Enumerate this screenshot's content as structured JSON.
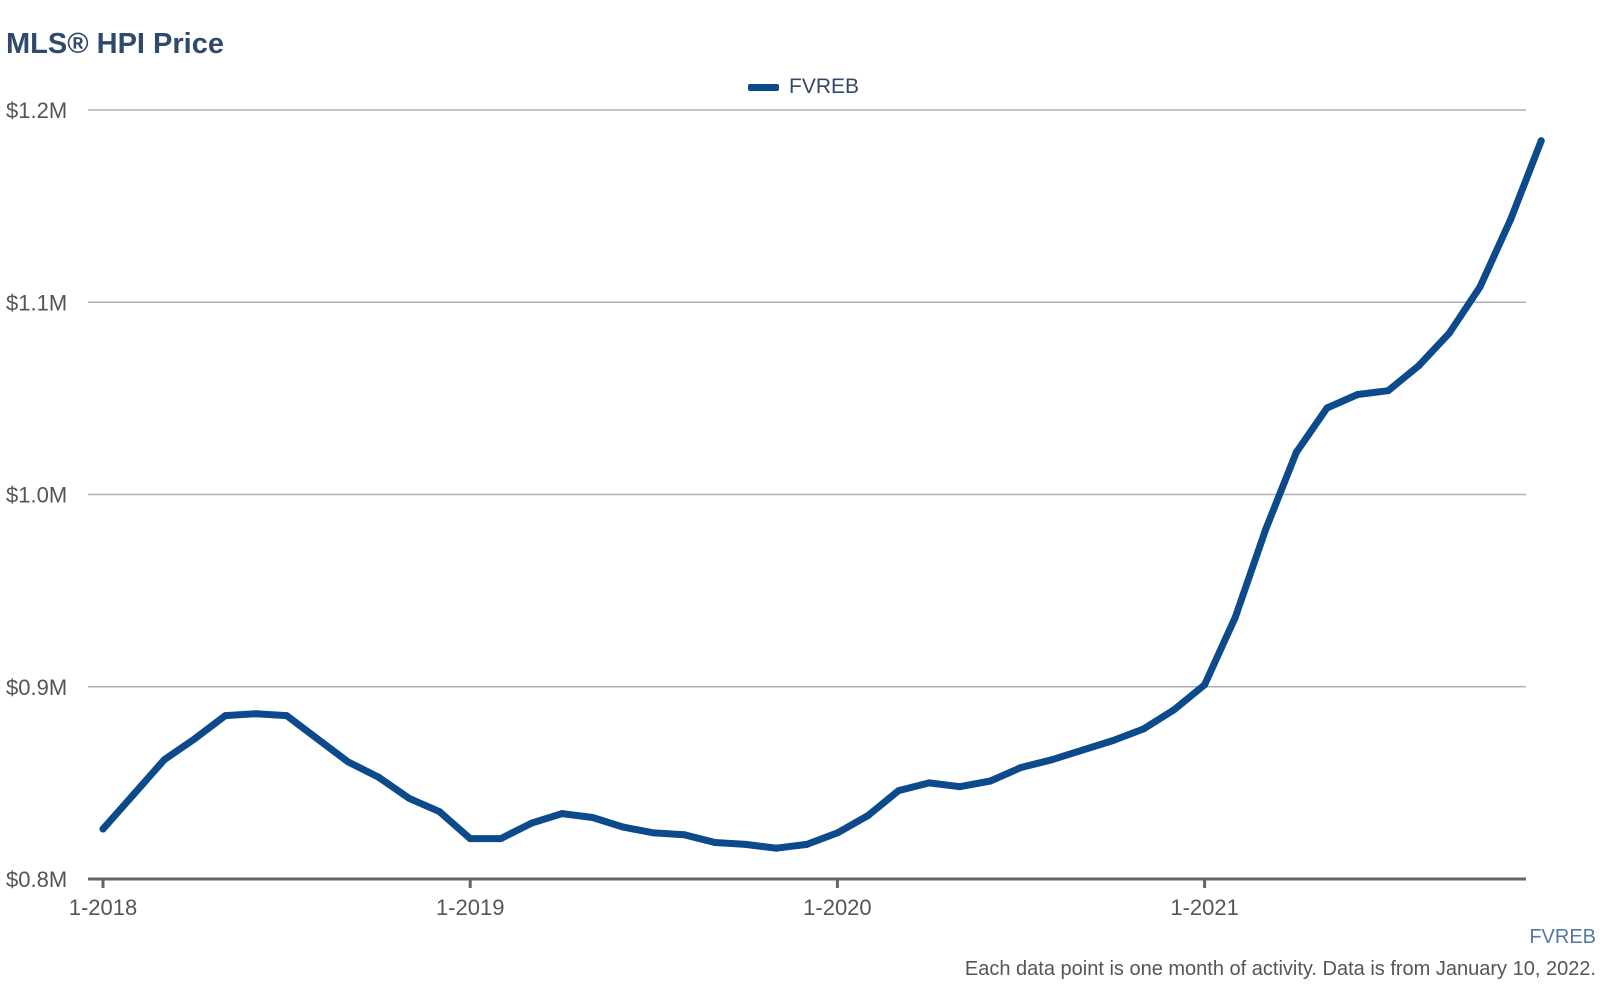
{
  "title": "MLS® HPI Price",
  "source": "FVREB",
  "footnote": "Each data point is one month of activity. Data is from January 10, 2022.",
  "colors": {
    "series": "#0c4a8c",
    "title": "#2f4a6b",
    "grid": "#b0b0b0",
    "axis": "#666666",
    "tick_text": "#555555",
    "source": "#5577a3"
  },
  "chart_data": {
    "type": "line",
    "title": "MLS® HPI Price",
    "xlabel": "",
    "ylabel": "",
    "legend": "top-center",
    "grid": true,
    "ylim": [
      0.8,
      1.2
    ],
    "y_ticks": [
      {
        "value": 1.2,
        "label": "$1.2M"
      },
      {
        "value": 1.1,
        "label": "$1.1M"
      },
      {
        "value": 1.0,
        "label": "$1.0M"
      },
      {
        "value": 0.9,
        "label": "$0.9M"
      },
      {
        "value": 0.8,
        "label": "$0.8M"
      }
    ],
    "x_ticks": [
      {
        "value": "2018-01",
        "label": "1-2018"
      },
      {
        "value": "2019-01",
        "label": "1-2019"
      },
      {
        "value": "2020-01",
        "label": "1-2020"
      },
      {
        "value": "2021-01",
        "label": "1-2021"
      }
    ],
    "x": [
      "2018-01",
      "2018-02",
      "2018-03",
      "2018-04",
      "2018-05",
      "2018-06",
      "2018-07",
      "2018-08",
      "2018-09",
      "2018-10",
      "2018-11",
      "2018-12",
      "2019-01",
      "2019-02",
      "2019-03",
      "2019-04",
      "2019-05",
      "2019-06",
      "2019-07",
      "2019-08",
      "2019-09",
      "2019-10",
      "2019-11",
      "2019-12",
      "2020-01",
      "2020-02",
      "2020-03",
      "2020-04",
      "2020-05",
      "2020-06",
      "2020-07",
      "2020-08",
      "2020-09",
      "2020-10",
      "2020-11",
      "2020-12",
      "2021-01",
      "2021-02",
      "2021-03",
      "2021-04",
      "2021-05",
      "2021-06",
      "2021-07",
      "2021-08",
      "2021-09",
      "2021-10",
      "2021-11",
      "2021-12"
    ],
    "series": [
      {
        "name": "FVREB",
        "values": [
          0.826,
          0.844,
          0.862,
          0.873,
          0.885,
          0.886,
          0.885,
          0.873,
          0.861,
          0.853,
          0.842,
          0.835,
          0.821,
          0.821,
          0.829,
          0.834,
          0.832,
          0.827,
          0.824,
          0.823,
          0.819,
          0.818,
          0.816,
          0.818,
          0.824,
          0.833,
          0.846,
          0.85,
          0.848,
          0.851,
          0.858,
          0.862,
          0.867,
          0.872,
          0.878,
          0.888,
          0.901,
          0.936,
          0.982,
          1.022,
          1.045,
          1.052,
          1.054,
          1.067,
          1.084,
          1.108,
          1.143,
          1.184
        ]
      }
    ]
  }
}
